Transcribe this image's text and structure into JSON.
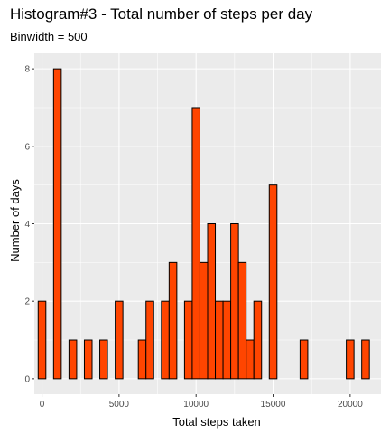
{
  "chart_data": {
    "type": "bar",
    "title": "Histogram#3 - Total number of steps per day",
    "subtitle": "Binwidth = 500",
    "xlabel": "Total steps taken",
    "ylabel": "Number of days",
    "binwidth": 500,
    "xlim": [
      -500,
      22000
    ],
    "ylim": [
      -0.4,
      8.4
    ],
    "x_ticks": [
      0,
      5000,
      10000,
      15000,
      20000
    ],
    "y_ticks": [
      0,
      2,
      4,
      6,
      8
    ],
    "bins": [
      {
        "center": 0,
        "count": 2
      },
      {
        "center": 1000,
        "count": 8
      },
      {
        "center": 2000,
        "count": 1
      },
      {
        "center": 3000,
        "count": 1
      },
      {
        "center": 4000,
        "count": 1
      },
      {
        "center": 5000,
        "count": 2
      },
      {
        "center": 6500,
        "count": 1
      },
      {
        "center": 7000,
        "count": 2
      },
      {
        "center": 8000,
        "count": 2
      },
      {
        "center": 8500,
        "count": 3
      },
      {
        "center": 9500,
        "count": 2
      },
      {
        "center": 10000,
        "count": 7
      },
      {
        "center": 10500,
        "count": 3
      },
      {
        "center": 11000,
        "count": 4
      },
      {
        "center": 11500,
        "count": 2
      },
      {
        "center": 12000,
        "count": 2
      },
      {
        "center": 12500,
        "count": 4
      },
      {
        "center": 13000,
        "count": 3
      },
      {
        "center": 13500,
        "count": 1
      },
      {
        "center": 14000,
        "count": 2
      },
      {
        "center": 15000,
        "count": 5
      },
      {
        "center": 17000,
        "count": 1
      },
      {
        "center": 20000,
        "count": 1
      },
      {
        "center": 21000,
        "count": 1
      }
    ],
    "grid": true,
    "colors": {
      "bar_fill": "#FF4500",
      "bar_stroke": "#000000",
      "panel_background": "#EBEBEB",
      "grid_line": "#FFFFFF"
    }
  }
}
